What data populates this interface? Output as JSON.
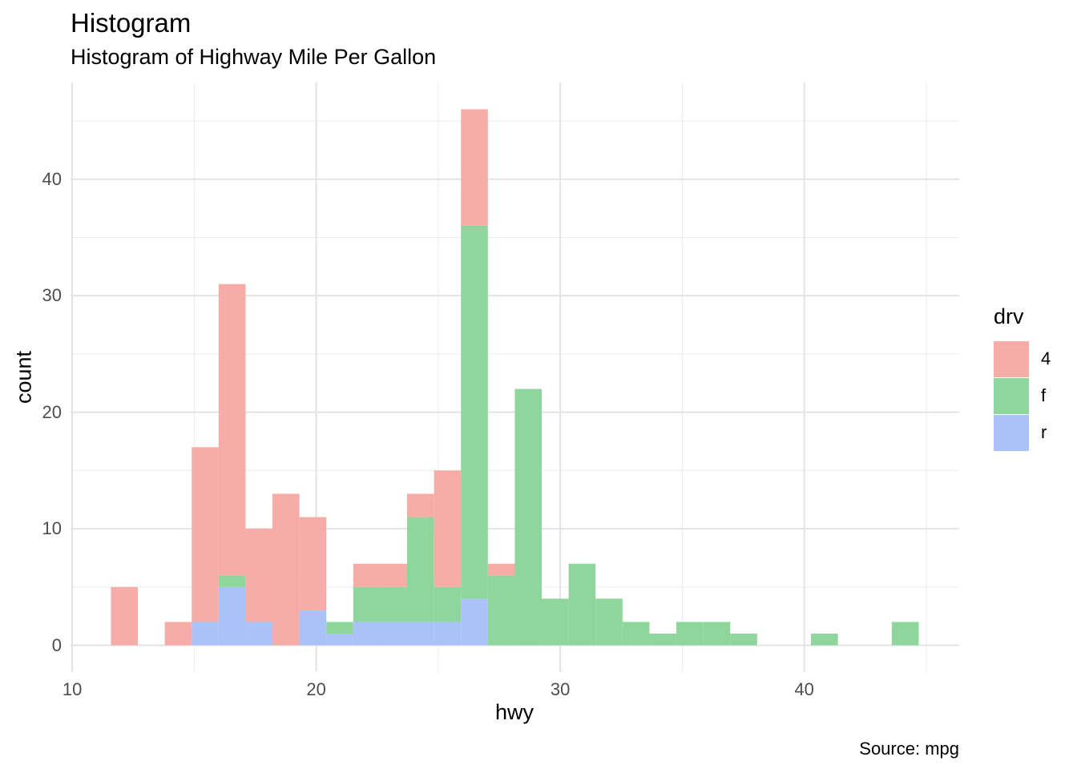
{
  "chart_data": {
    "type": "histogram",
    "title": "Histogram",
    "subtitle": "Histogram of Highway Mile Per Gallon",
    "caption": "Source: mpg",
    "xlabel": "hwy",
    "ylabel": "count",
    "legend_position": "right",
    "grid": "on",
    "x_domain": [
      9.93,
      46.35
    ],
    "y_domain": [
      -2.3,
      48.3
    ],
    "x_major_ticks": [
      10,
      20,
      30,
      40
    ],
    "x_minor_ticks": [
      15,
      25,
      35,
      45
    ],
    "y_major_ticks": [
      0,
      10,
      20,
      30,
      40
    ],
    "y_minor_ticks": [
      5,
      15,
      25,
      35,
      45
    ],
    "binwidth": 1.1034,
    "stack_order_bottom_to_top": [
      "r",
      "f",
      "drv4"
    ],
    "bins": [
      {
        "x0": 11.586,
        "x1": 12.69,
        "r": 0,
        "f": 0,
        "drv4": 5
      },
      {
        "x0": 13.793,
        "x1": 14.897,
        "r": 0,
        "f": 0,
        "drv4": 2
      },
      {
        "x0": 14.897,
        "x1": 16.0,
        "r": 2,
        "f": 0,
        "drv4": 15
      },
      {
        "x0": 16.0,
        "x1": 17.103,
        "r": 5,
        "f": 1,
        "drv4": 25
      },
      {
        "x0": 17.103,
        "x1": 18.207,
        "r": 2,
        "f": 0,
        "drv4": 8
      },
      {
        "x0": 18.207,
        "x1": 19.31,
        "r": 0,
        "f": 0,
        "drv4": 13
      },
      {
        "x0": 19.31,
        "x1": 20.414,
        "r": 3,
        "f": 0,
        "drv4": 8
      },
      {
        "x0": 20.414,
        "x1": 21.517,
        "r": 1,
        "f": 1,
        "drv4": 0
      },
      {
        "x0": 21.517,
        "x1": 22.621,
        "r": 2,
        "f": 3,
        "drv4": 2
      },
      {
        "x0": 22.621,
        "x1": 23.724,
        "r": 2,
        "f": 3,
        "drv4": 2
      },
      {
        "x0": 23.724,
        "x1": 24.828,
        "r": 2,
        "f": 9,
        "drv4": 2
      },
      {
        "x0": 24.828,
        "x1": 25.931,
        "r": 2,
        "f": 3,
        "drv4": 10
      },
      {
        "x0": 25.931,
        "x1": 27.034,
        "r": 4,
        "f": 32,
        "drv4": 10
      },
      {
        "x0": 27.034,
        "x1": 28.138,
        "r": 0,
        "f": 6,
        "drv4": 1
      },
      {
        "x0": 28.138,
        "x1": 29.241,
        "r": 0,
        "f": 22,
        "drv4": 0
      },
      {
        "x0": 29.241,
        "x1": 30.345,
        "r": 0,
        "f": 4,
        "drv4": 0
      },
      {
        "x0": 30.345,
        "x1": 31.448,
        "r": 0,
        "f": 7,
        "drv4": 0
      },
      {
        "x0": 31.448,
        "x1": 32.552,
        "r": 0,
        "f": 4,
        "drv4": 0
      },
      {
        "x0": 32.552,
        "x1": 33.655,
        "r": 0,
        "f": 2,
        "drv4": 0
      },
      {
        "x0": 33.655,
        "x1": 34.759,
        "r": 0,
        "f": 1,
        "drv4": 0
      },
      {
        "x0": 34.759,
        "x1": 35.862,
        "r": 0,
        "f": 2,
        "drv4": 0
      },
      {
        "x0": 35.862,
        "x1": 36.966,
        "r": 0,
        "f": 2,
        "drv4": 0
      },
      {
        "x0": 36.966,
        "x1": 38.069,
        "r": 0,
        "f": 1,
        "drv4": 0
      },
      {
        "x0": 40.276,
        "x1": 41.379,
        "r": 0,
        "f": 1,
        "drv4": 0
      },
      {
        "x0": 43.586,
        "x1": 44.69,
        "r": 0,
        "f": 2,
        "drv4": 0
      }
    ]
  },
  "legend": {
    "title": "drv",
    "items": [
      {
        "label": "4",
        "key": "drv4",
        "color": "#F8ACA8"
      },
      {
        "label": "f",
        "key": "f",
        "color": "#8ED69B"
      },
      {
        "label": "r",
        "key": "r",
        "color": "#A9C2F8"
      }
    ]
  },
  "colors": {
    "drv4": "#F8ACA8",
    "f": "#8ED69B",
    "r": "#A9C2F8",
    "grid_major": "#E3E3E3",
    "grid_minor": "#EBEBEB",
    "tick_text": "#4D4D4D",
    "background": "#FFFFFF"
  }
}
